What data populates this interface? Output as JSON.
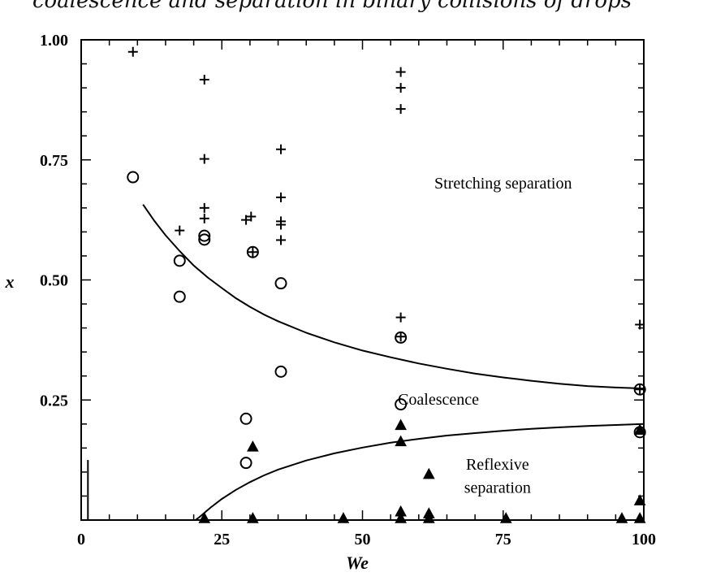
{
  "figure": {
    "title_fragment": "coalescence and separation in binary collisions of drops"
  },
  "chart_data": {
    "type": "scatter",
    "title": "",
    "xlabel": "We",
    "ylabel": "x",
    "xlim": [
      0,
      100
    ],
    "ylim": [
      0,
      1.0
    ],
    "x_ticks": [
      0,
      25,
      50,
      75,
      100
    ],
    "x_tick_labels": [
      "0",
      "25",
      "50",
      "75",
      "100"
    ],
    "y_ticks": [
      0.25,
      0.5,
      0.75,
      1.0
    ],
    "y_tick_labels": [
      "0.25",
      "0.50",
      "0.75",
      "1.00"
    ],
    "grid": false,
    "legend": "none",
    "annotations": [
      {
        "text": "Stretching separation",
        "x": 75,
        "y": 0.69
      },
      {
        "text": "Coalescence",
        "x": 63.5,
        "y": 0.24
      },
      {
        "text": "Reflexive",
        "x": 74,
        "y": 0.105
      },
      {
        "text": "separation",
        "x": 74,
        "y": 0.057
      }
    ],
    "series": [
      {
        "marker": "plus",
        "points": [
          [
            9.2,
            0.975
          ],
          [
            21.9,
            0.917
          ],
          [
            21.9,
            0.752
          ],
          [
            21.9,
            0.65
          ],
          [
            21.9,
            0.628
          ],
          [
            17.5,
            0.603
          ],
          [
            29.3,
            0.625
          ],
          [
            30.2,
            0.632
          ],
          [
            35.5,
            0.772
          ],
          [
            35.5,
            0.672
          ],
          [
            35.5,
            0.622
          ],
          [
            35.5,
            0.615
          ],
          [
            35.5,
            0.583
          ],
          [
            56.8,
            0.933
          ],
          [
            56.8,
            0.9
          ],
          [
            56.8,
            0.856
          ],
          [
            56.8,
            0.422
          ],
          [
            99.3,
            0.407
          ],
          [
            30.5,
            0.558
          ],
          [
            56.8,
            0.382
          ],
          [
            99.3,
            0.272
          ]
        ]
      },
      {
        "marker": "circle",
        "points": [
          [
            9.2,
            0.714
          ],
          [
            17.5,
            0.54
          ],
          [
            17.5,
            0.465
          ],
          [
            21.9,
            0.592
          ],
          [
            21.9,
            0.584
          ],
          [
            30.5,
            0.558
          ],
          [
            35.5,
            0.493
          ],
          [
            35.5,
            0.309
          ],
          [
            29.3,
            0.211
          ],
          [
            29.3,
            0.119
          ],
          [
            56.8,
            0.38
          ],
          [
            56.8,
            0.241
          ],
          [
            99.3,
            0.272
          ],
          [
            99.3,
            0.183
          ]
        ]
      },
      {
        "marker": "triangle",
        "points": [
          [
            30.5,
            0.152
          ],
          [
            56.8,
            0.197
          ],
          [
            56.8,
            0.163
          ],
          [
            61.8,
            0.095
          ],
          [
            99.3,
            0.187
          ],
          [
            99.3,
            0.04
          ],
          [
            56.8,
            0.017
          ],
          [
            61.8,
            0.013
          ],
          [
            21.9,
            0.003
          ],
          [
            30.5,
            0.003
          ],
          [
            46.6,
            0.003
          ],
          [
            56.8,
            0.003
          ],
          [
            61.8,
            0.003
          ],
          [
            75.5,
            0.003
          ],
          [
            96.1,
            0.003
          ],
          [
            99.3,
            0.003
          ]
        ]
      }
    ],
    "curves": [
      {
        "name": "",
        "points": [
          [
            11,
            0.657
          ],
          [
            13,
            0.623
          ],
          [
            15,
            0.593
          ],
          [
            17.5,
            0.56
          ],
          [
            20,
            0.53
          ],
          [
            22.5,
            0.505
          ],
          [
            25,
            0.483
          ],
          [
            27.5,
            0.462
          ],
          [
            30,
            0.444
          ],
          [
            32.5,
            0.428
          ],
          [
            35,
            0.414
          ],
          [
            40,
            0.39
          ],
          [
            45,
            0.37
          ],
          [
            50,
            0.353
          ],
          [
            55,
            0.339
          ],
          [
            60,
            0.326
          ],
          [
            65,
            0.315
          ],
          [
            70,
            0.305
          ],
          [
            75,
            0.297
          ],
          [
            80,
            0.29
          ],
          [
            85,
            0.284
          ],
          [
            90,
            0.279
          ],
          [
            95,
            0.276
          ],
          [
            100,
            0.274
          ]
        ]
      },
      {
        "name": "",
        "points": [
          [
            0,
            0.0
          ],
          [
            20.3,
            0.0
          ],
          [
            21,
            0.006
          ],
          [
            22,
            0.016
          ],
          [
            23,
            0.026
          ],
          [
            25,
            0.044
          ],
          [
            27.5,
            0.063
          ],
          [
            30,
            0.079
          ],
          [
            32.5,
            0.093
          ],
          [
            35,
            0.105
          ],
          [
            40,
            0.124
          ],
          [
            45,
            0.139
          ],
          [
            50,
            0.151
          ],
          [
            55,
            0.161
          ],
          [
            60,
            0.169
          ],
          [
            65,
            0.176
          ],
          [
            70,
            0.181
          ],
          [
            75,
            0.186
          ],
          [
            80,
            0.19
          ],
          [
            85,
            0.193
          ],
          [
            90,
            0.196
          ],
          [
            95,
            0.198
          ],
          [
            100,
            0.2
          ]
        ]
      },
      {
        "name": "",
        "points": [
          [
            1.2,
            0.0
          ],
          [
            1.2,
            0.125
          ]
        ]
      }
    ]
  }
}
